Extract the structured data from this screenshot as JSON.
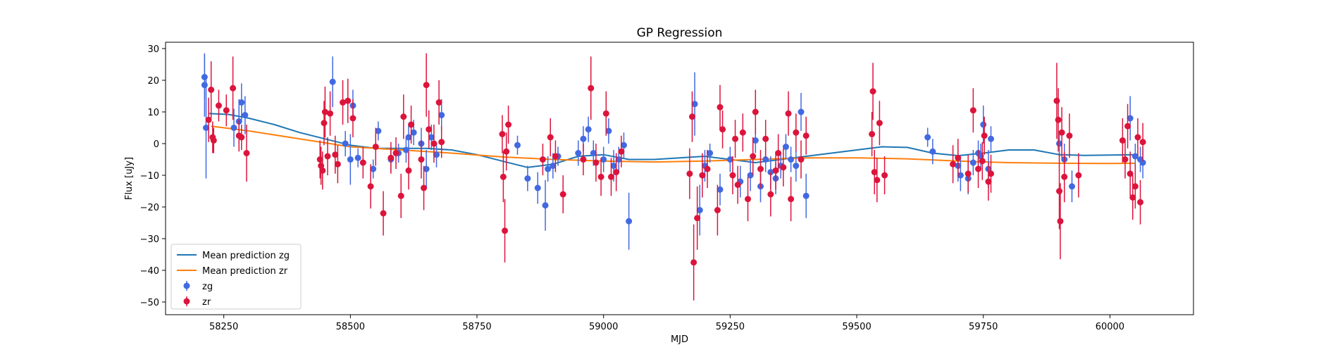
{
  "chart_data": {
    "type": "scatter",
    "title": "GP Regression",
    "xlabel": "MJD",
    "ylabel": "Flux [uJy]",
    "xlim": [
      58135,
      60165
    ],
    "ylim": [
      -54,
      32
    ],
    "xticks": [
      58250,
      58500,
      58750,
      59000,
      59250,
      59500,
      59750,
      60000
    ],
    "yticks": [
      30,
      20,
      10,
      0,
      -10,
      -20,
      -30,
      -40,
      -50
    ],
    "grid": false,
    "legend_position": "lower-left",
    "legend": [
      "Mean prediction zg",
      "Mean prediction zr",
      "zg",
      "zr"
    ],
    "colors": {
      "zg_line": "#1f77b4",
      "zr_line": "#ff7f0e",
      "zg_points": "#4169e1",
      "zr_points": "#dc143c"
    },
    "series": [
      {
        "name": "Mean prediction zg",
        "kind": "line",
        "x": [
          58220,
          58260,
          58300,
          58350,
          58400,
          58450,
          58500,
          58550,
          58600,
          58650,
          58700,
          58750,
          58800,
          58850,
          58900,
          58950,
          59000,
          59050,
          59100,
          59150,
          59200,
          59250,
          59300,
          59350,
          59400,
          59450,
          59500,
          59550,
          59600,
          59650,
          59700,
          59750,
          59800,
          59850,
          59900,
          59950,
          60000,
          60050
        ],
        "y": [
          9.5,
          9.2,
          8.0,
          6.0,
          3.5,
          1.5,
          -0.5,
          -1.5,
          -1.5,
          -1.5,
          -2.0,
          -3.5,
          -5.5,
          -7.5,
          -6.5,
          -4.0,
          -3.5,
          -5.0,
          -5.0,
          -4.5,
          -4.0,
          -5.0,
          -6.0,
          -5.0,
          -4.0,
          -3.0,
          -2.0,
          -1.0,
          -1.2,
          -3.0,
          -3.8,
          -3.0,
          -2.0,
          -2.0,
          -3.5,
          -3.7,
          -3.6,
          -3.5
        ]
      },
      {
        "name": "Mean prediction zr",
        "kind": "line",
        "x": [
          58225,
          58300,
          58400,
          58500,
          58600,
          58700,
          58800,
          58900,
          59000,
          59100,
          59200,
          59300,
          59400,
          59500,
          59600,
          59700,
          59800,
          59900,
          60000,
          60050
        ],
        "y": [
          5.5,
          4.0,
          1.5,
          -1.0,
          -2.0,
          -3.0,
          -4.2,
          -5.0,
          -5.5,
          -5.8,
          -5.5,
          -5.0,
          -4.5,
          -4.5,
          -4.8,
          -5.5,
          -6.0,
          -6.2,
          -6.3,
          -6.2
        ]
      },
      {
        "name": "zg",
        "kind": "errorbar",
        "points": [
          [
            58212,
            21,
            7
          ],
          [
            58212,
            18.5,
            10
          ],
          [
            58215,
            5,
            16
          ],
          [
            58270,
            5,
            6
          ],
          [
            58280,
            7,
            7
          ],
          [
            58285,
            13,
            6
          ],
          [
            58292,
            9,
            6
          ],
          [
            58465,
            19.5,
            8
          ],
          [
            58490,
            0,
            4
          ],
          [
            58500,
            -5,
            8
          ],
          [
            58505,
            12,
            5
          ],
          [
            58515,
            -4.5,
            3
          ],
          [
            58545,
            -8,
            3
          ],
          [
            58555,
            4,
            3
          ],
          [
            58580,
            -5,
            4
          ],
          [
            58595,
            -3,
            3
          ],
          [
            58610,
            -2,
            4
          ],
          [
            58615,
            2,
            4
          ],
          [
            58625,
            3.5,
            4
          ],
          [
            58640,
            0,
            5
          ],
          [
            58650,
            -8,
            6
          ],
          [
            58660,
            2,
            4
          ],
          [
            58670,
            -3.5,
            4
          ],
          [
            58680,
            9,
            5
          ],
          [
            58830,
            -0.5,
            3
          ],
          [
            58850,
            -11,
            4
          ],
          [
            58870,
            -14,
            5
          ],
          [
            58885,
            -19.5,
            8
          ],
          [
            58890,
            -8,
            4
          ],
          [
            58900,
            -7,
            4
          ],
          [
            58910,
            -4,
            3
          ],
          [
            58950,
            -3,
            4
          ],
          [
            58960,
            1.5,
            4
          ],
          [
            58970,
            4.5,
            4
          ],
          [
            58980,
            -3,
            4
          ],
          [
            59000,
            -5,
            4
          ],
          [
            59010,
            4,
            4
          ],
          [
            59020,
            -7,
            5
          ],
          [
            59030,
            -5,
            4
          ],
          [
            59040,
            -0.5,
            4
          ],
          [
            59050,
            -24.5,
            9
          ],
          [
            59180,
            12.5,
            10
          ],
          [
            59190,
            -21,
            8
          ],
          [
            59200,
            -7,
            5
          ],
          [
            59210,
            -3,
            3
          ],
          [
            59230,
            -14.5,
            5
          ],
          [
            59250,
            -5,
            4
          ],
          [
            59270,
            -12,
            5
          ],
          [
            59290,
            -10,
            5
          ],
          [
            59300,
            1,
            4
          ],
          [
            59310,
            -13.5,
            5
          ],
          [
            59320,
            -5,
            4
          ],
          [
            59330,
            -9,
            5
          ],
          [
            59340,
            -11,
            5
          ],
          [
            59350,
            -7,
            4
          ],
          [
            59360,
            -1,
            4
          ],
          [
            59370,
            -5,
            4
          ],
          [
            59380,
            -7,
            5
          ],
          [
            59390,
            10,
            6
          ],
          [
            59400,
            -16.5,
            7
          ],
          [
            59640,
            2,
            3
          ],
          [
            59650,
            -2.5,
            4
          ],
          [
            59700,
            -7,
            5
          ],
          [
            59705,
            -10,
            5
          ],
          [
            59720,
            -11,
            5
          ],
          [
            59730,
            -6,
            4
          ],
          [
            59740,
            -3,
            4
          ],
          [
            59745,
            -4,
            4
          ],
          [
            59750,
            6,
            6
          ],
          [
            59760,
            -8,
            6
          ],
          [
            59765,
            1.5,
            4
          ],
          [
            59900,
            0,
            4
          ],
          [
            59910,
            -5,
            5
          ],
          [
            59925,
            -13.5,
            5
          ],
          [
            60040,
            8,
            7
          ],
          [
            60050,
            -4,
            4
          ],
          [
            60060,
            -5,
            4
          ],
          [
            60065,
            -6,
            5
          ]
        ]
      },
      {
        "name": "zr",
        "kind": "errorbar",
        "points": [
          [
            58220,
            7.5,
            7
          ],
          [
            58225,
            17,
            9
          ],
          [
            58228,
            2,
            5
          ],
          [
            58230,
            1,
            4
          ],
          [
            58240,
            12,
            5
          ],
          [
            58255,
            10.5,
            5
          ],
          [
            58268,
            17.5,
            10
          ],
          [
            58280,
            2.5,
            5
          ],
          [
            58285,
            2,
            4
          ],
          [
            58295,
            -3,
            9
          ],
          [
            58440,
            -5,
            6
          ],
          [
            58442,
            -7,
            6
          ],
          [
            58445,
            -8.5,
            6
          ],
          [
            58448,
            6.5,
            7
          ],
          [
            58450,
            10,
            8
          ],
          [
            58455,
            -4,
            6
          ],
          [
            58460,
            9.5,
            7
          ],
          [
            58470,
            -3.5,
            6
          ],
          [
            58475,
            -6.5,
            6
          ],
          [
            58485,
            13,
            7
          ],
          [
            58495,
            13.5,
            7
          ],
          [
            58505,
            8,
            6
          ],
          [
            58525,
            -6,
            5
          ],
          [
            58540,
            -13.5,
            7
          ],
          [
            58550,
            -1,
            6
          ],
          [
            58565,
            -22,
            7
          ],
          [
            58580,
            -4.5,
            5
          ],
          [
            58590,
            -3,
            5
          ],
          [
            58600,
            -16.5,
            7
          ],
          [
            58605,
            8.5,
            7
          ],
          [
            58615,
            -8.5,
            6
          ],
          [
            58620,
            6,
            6
          ],
          [
            58640,
            -5,
            6
          ],
          [
            58645,
            -14,
            7
          ],
          [
            58650,
            18.5,
            10
          ],
          [
            58655,
            4.5,
            6
          ],
          [
            58665,
            0,
            6
          ],
          [
            58675,
            13,
            7
          ],
          [
            58680,
            0.5,
            5
          ],
          [
            58800,
            3,
            6
          ],
          [
            58802,
            -10.5,
            8
          ],
          [
            58805,
            -27.5,
            10
          ],
          [
            58808,
            -2.5,
            6
          ],
          [
            58812,
            6,
            6
          ],
          [
            58880,
            -5,
            5
          ],
          [
            58895,
            2,
            6
          ],
          [
            58905,
            -4,
            5
          ],
          [
            58920,
            -16,
            6
          ],
          [
            58960,
            -5,
            5
          ],
          [
            58975,
            17.5,
            10
          ],
          [
            58985,
            -6,
            6
          ],
          [
            58995,
            -10.5,
            6
          ],
          [
            59005,
            9.5,
            7
          ],
          [
            59015,
            -10.5,
            6
          ],
          [
            59025,
            -9,
            6
          ],
          [
            59035,
            -2.5,
            5
          ],
          [
            59170,
            -9.5,
            8
          ],
          [
            59175,
            8.5,
            8
          ],
          [
            59178,
            -37.5,
            12
          ],
          [
            59185,
            -23.5,
            10
          ],
          [
            59195,
            -10,
            7
          ],
          [
            59205,
            -8,
            6
          ],
          [
            59225,
            -21,
            8
          ],
          [
            59230,
            11.5,
            7
          ],
          [
            59235,
            4.5,
            6
          ],
          [
            59255,
            -10,
            6
          ],
          [
            59260,
            1.5,
            6
          ],
          [
            59265,
            -13,
            6
          ],
          [
            59275,
            3.5,
            6
          ],
          [
            59285,
            -17.5,
            7
          ],
          [
            59295,
            -4,
            6
          ],
          [
            59300,
            10,
            7
          ],
          [
            59310,
            -8,
            6
          ],
          [
            59320,
            1.5,
            6
          ],
          [
            59330,
            -16,
            7
          ],
          [
            59340,
            -8.5,
            6
          ],
          [
            59345,
            -3,
            6
          ],
          [
            59355,
            -7.5,
            6
          ],
          [
            59365,
            9.5,
            7
          ],
          [
            59370,
            -17.5,
            7
          ],
          [
            59380,
            3.5,
            6
          ],
          [
            59390,
            -5,
            6
          ],
          [
            59400,
            2.5,
            6
          ],
          [
            59530,
            3,
            7
          ],
          [
            59532,
            16.5,
            9
          ],
          [
            59535,
            -9,
            7
          ],
          [
            59540,
            -11.5,
            7
          ],
          [
            59545,
            6.5,
            7
          ],
          [
            59555,
            -10,
            6
          ],
          [
            59690,
            -6.5,
            6
          ],
          [
            59700,
            -4.5,
            6
          ],
          [
            59720,
            -9.5,
            6
          ],
          [
            59730,
            10.5,
            7
          ],
          [
            59740,
            -8,
            6
          ],
          [
            59748,
            -5.5,
            6
          ],
          [
            59752,
            2.5,
            6
          ],
          [
            59760,
            -12,
            6
          ],
          [
            59765,
            -9.5,
            6
          ],
          [
            59895,
            13.5,
            12
          ],
          [
            59898,
            7.5,
            10
          ],
          [
            59900,
            -15,
            12
          ],
          [
            59902,
            -24.5,
            12
          ],
          [
            59905,
            3.5,
            8
          ],
          [
            59910,
            -10.5,
            8
          ],
          [
            59920,
            2.5,
            7
          ],
          [
            59938,
            -10,
            7
          ],
          [
            60025,
            1,
            7
          ],
          [
            60030,
            -5,
            6
          ],
          [
            60035,
            5.5,
            7
          ],
          [
            60040,
            -9.5,
            7
          ],
          [
            60045,
            -17,
            7
          ],
          [
            60050,
            -13.5,
            7
          ],
          [
            60055,
            2,
            6
          ],
          [
            60060,
            -18.5,
            7
          ],
          [
            60065,
            0.5,
            6
          ]
        ]
      }
    ]
  }
}
